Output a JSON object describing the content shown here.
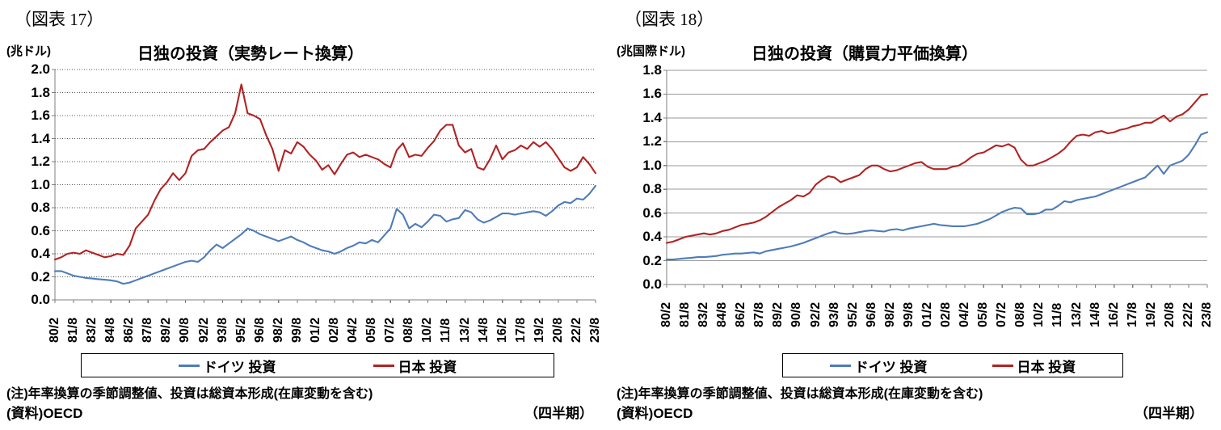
{
  "chart_data": [
    {
      "type": "line",
      "fig_label": "（図表 17）",
      "unit": "(兆ドル)",
      "title": "日独の投資（実勢レート換算）",
      "ylim": [
        0.0,
        2.0
      ],
      "ytick_step": 0.2,
      "grid_style": "dotted",
      "x_labels": [
        "80/2",
        "81/8",
        "83/2",
        "84/8",
        "86/2",
        "87/8",
        "89/2",
        "90/8",
        "92/2",
        "93/8",
        "95/2",
        "96/8",
        "98/2",
        "99/8",
        "01/2",
        "02/8",
        "04/2",
        "05/8",
        "07/2",
        "08/8",
        "10/2",
        "11/8",
        "13/2",
        "14/8",
        "16/2",
        "17/8",
        "19/2",
        "20/8",
        "22/2",
        "23/8"
      ],
      "series": [
        {
          "name": "ドイツ 投資",
          "color": "#4e7cb8",
          "values": [
            0.25,
            0.25,
            0.23,
            0.21,
            0.2,
            0.19,
            0.185,
            0.18,
            0.175,
            0.17,
            0.16,
            0.14,
            0.15,
            0.17,
            0.19,
            0.21,
            0.23,
            0.25,
            0.27,
            0.29,
            0.31,
            0.33,
            0.34,
            0.33,
            0.37,
            0.43,
            0.48,
            0.45,
            0.49,
            0.53,
            0.57,
            0.62,
            0.6,
            0.57,
            0.55,
            0.53,
            0.51,
            0.53,
            0.55,
            0.52,
            0.5,
            0.47,
            0.45,
            0.43,
            0.42,
            0.4,
            0.42,
            0.45,
            0.47,
            0.5,
            0.49,
            0.52,
            0.5,
            0.56,
            0.62,
            0.79,
            0.74,
            0.62,
            0.66,
            0.63,
            0.68,
            0.74,
            0.73,
            0.68,
            0.7,
            0.71,
            0.78,
            0.76,
            0.7,
            0.67,
            0.69,
            0.72,
            0.75,
            0.75,
            0.74,
            0.75,
            0.76,
            0.77,
            0.76,
            0.73,
            0.77,
            0.82,
            0.85,
            0.84,
            0.88,
            0.87,
            0.92,
            0.99
          ]
        },
        {
          "name": "日本 投資",
          "color": "#b22222",
          "values": [
            0.35,
            0.37,
            0.4,
            0.41,
            0.4,
            0.43,
            0.41,
            0.39,
            0.37,
            0.38,
            0.4,
            0.39,
            0.47,
            0.62,
            0.68,
            0.74,
            0.86,
            0.96,
            1.02,
            1.1,
            1.04,
            1.1,
            1.25,
            1.3,
            1.31,
            1.37,
            1.42,
            1.47,
            1.5,
            1.62,
            1.87,
            1.62,
            1.6,
            1.57,
            1.43,
            1.31,
            1.12,
            1.3,
            1.27,
            1.37,
            1.33,
            1.26,
            1.21,
            1.13,
            1.17,
            1.09,
            1.18,
            1.26,
            1.28,
            1.24,
            1.26,
            1.24,
            1.22,
            1.18,
            1.15,
            1.3,
            1.36,
            1.24,
            1.26,
            1.25,
            1.32,
            1.38,
            1.47,
            1.52,
            1.52,
            1.34,
            1.28,
            1.31,
            1.15,
            1.13,
            1.22,
            1.34,
            1.22,
            1.28,
            1.3,
            1.34,
            1.31,
            1.37,
            1.33,
            1.37,
            1.31,
            1.23,
            1.15,
            1.12,
            1.15,
            1.24,
            1.18,
            1.1
          ]
        }
      ],
      "note": "(注)年率換算の季節調整値、投資は総資本形成(在庫変動を含む)",
      "source": "(資料)OECD",
      "period_label": "（四半期）"
    },
    {
      "type": "line",
      "fig_label": "（図表 18）",
      "unit": "(兆国際ドル)",
      "title": "日独の投資（購買力平価換算）",
      "ylim": [
        0.0,
        1.8
      ],
      "ytick_step": 0.2,
      "grid_style": "solid",
      "x_labels": [
        "80/2",
        "81/8",
        "83/2",
        "84/8",
        "86/2",
        "87/8",
        "89/2",
        "90/8",
        "92/2",
        "93/8",
        "95/2",
        "96/8",
        "98/2",
        "99/8",
        "01/2",
        "02/8",
        "04/2",
        "05/8",
        "07/2",
        "08/8",
        "10/2",
        "11/8",
        "13/2",
        "14/8",
        "16/2",
        "17/8",
        "19/2",
        "20/8",
        "22/2",
        "23/8"
      ],
      "series": [
        {
          "name": "ドイツ 投資",
          "color": "#4e7cb8",
          "values": [
            0.21,
            0.21,
            0.215,
            0.22,
            0.225,
            0.23,
            0.23,
            0.235,
            0.24,
            0.25,
            0.255,
            0.26,
            0.26,
            0.265,
            0.27,
            0.26,
            0.28,
            0.29,
            0.3,
            0.31,
            0.32,
            0.335,
            0.35,
            0.37,
            0.39,
            0.41,
            0.43,
            0.445,
            0.43,
            0.425,
            0.43,
            0.44,
            0.45,
            0.455,
            0.45,
            0.445,
            0.46,
            0.465,
            0.455,
            0.47,
            0.48,
            0.49,
            0.5,
            0.51,
            0.5,
            0.495,
            0.49,
            0.49,
            0.49,
            0.5,
            0.51,
            0.53,
            0.55,
            0.58,
            0.61,
            0.63,
            0.645,
            0.64,
            0.59,
            0.59,
            0.6,
            0.63,
            0.63,
            0.66,
            0.7,
            0.69,
            0.71,
            0.72,
            0.73,
            0.74,
            0.76,
            0.78,
            0.8,
            0.82,
            0.84,
            0.86,
            0.88,
            0.9,
            0.95,
            1.0,
            0.93,
            1.0,
            1.02,
            1.04,
            1.09,
            1.17,
            1.26,
            1.28
          ]
        },
        {
          "name": "日本 投資",
          "color": "#b22222",
          "values": [
            0.35,
            0.36,
            0.38,
            0.4,
            0.41,
            0.42,
            0.43,
            0.42,
            0.43,
            0.45,
            0.46,
            0.48,
            0.5,
            0.51,
            0.52,
            0.54,
            0.57,
            0.61,
            0.65,
            0.68,
            0.71,
            0.75,
            0.74,
            0.77,
            0.84,
            0.88,
            0.91,
            0.9,
            0.86,
            0.88,
            0.9,
            0.92,
            0.97,
            1.0,
            1.0,
            0.97,
            0.95,
            0.96,
            0.98,
            1.0,
            1.02,
            1.03,
            0.99,
            0.97,
            0.97,
            0.97,
            0.99,
            1.0,
            1.03,
            1.07,
            1.1,
            1.11,
            1.14,
            1.17,
            1.16,
            1.18,
            1.15,
            1.05,
            1.0,
            1.0,
            1.02,
            1.04,
            1.07,
            1.1,
            1.14,
            1.2,
            1.25,
            1.26,
            1.25,
            1.28,
            1.29,
            1.27,
            1.28,
            1.3,
            1.31,
            1.33,
            1.34,
            1.36,
            1.36,
            1.39,
            1.42,
            1.37,
            1.41,
            1.43,
            1.47,
            1.53,
            1.59,
            1.6
          ]
        }
      ],
      "note": "(注)年率換算の季節調整値、投資は総資本形成(在庫変動を含む)",
      "source": "(資料)OECD",
      "period_label": "（四半期）"
    }
  ]
}
